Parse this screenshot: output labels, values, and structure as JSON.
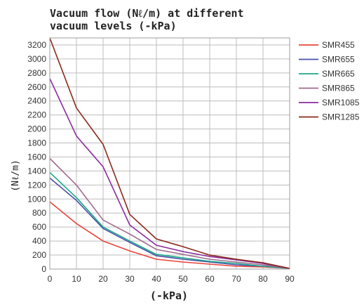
{
  "chart_data": {
    "type": "line",
    "title_line1": "Vacuum flow (Nℓ/m) at different",
    "title_line2": "vacuum levels (-kPa)",
    "xlabel": "(-kPa)",
    "ylabel": "(Nℓ/m)",
    "xlim": [
      0,
      90
    ],
    "ylim": [
      0,
      3300
    ],
    "xticks": [
      0,
      10,
      20,
      30,
      40,
      50,
      60,
      70,
      80,
      90
    ],
    "yticks": [
      0,
      200,
      400,
      600,
      800,
      1000,
      1200,
      1400,
      1600,
      1800,
      2000,
      2200,
      2400,
      2600,
      2800,
      3000,
      3200
    ],
    "grid": true,
    "legend_position": "top-right",
    "x": [
      0,
      10,
      20,
      30,
      40,
      50,
      60,
      70,
      80,
      90
    ],
    "series": [
      {
        "name": "SMR455",
        "color": "#e8443a",
        "values": [
          960,
          650,
          400,
          260,
          140,
          100,
          70,
          40,
          30,
          10
        ]
      },
      {
        "name": "SMR655",
        "color": "#4b4fa8",
        "values": [
          1300,
          980,
          580,
          380,
          190,
          140,
          100,
          60,
          40,
          10
        ]
      },
      {
        "name": "SMR665",
        "color": "#1aa88a",
        "values": [
          1380,
          1020,
          600,
          400,
          210,
          160,
          110,
          80,
          40,
          10
        ]
      },
      {
        "name": "SMR865",
        "color": "#a06a8e",
        "values": [
          1580,
          1200,
          700,
          500,
          280,
          210,
          140,
          100,
          60,
          10
        ]
      },
      {
        "name": "SMR1085",
        "color": "#8a2a9e",
        "values": [
          2720,
          1900,
          1460,
          630,
          340,
          250,
          180,
          130,
          80,
          10
        ]
      },
      {
        "name": "SMR1285",
        "color": "#8b2a1a",
        "values": [
          3300,
          2300,
          1780,
          780,
          430,
          320,
          200,
          140,
          90,
          10
        ]
      }
    ]
  }
}
